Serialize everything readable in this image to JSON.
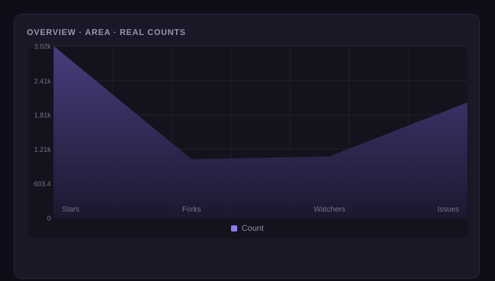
{
  "card": {
    "title": "OVERVIEW · AREA · REAL COUNTS"
  },
  "chart_data": {
    "type": "area",
    "categories": [
      "Stars",
      "Forks",
      "Watchers",
      "Issues"
    ],
    "series": [
      {
        "name": "Count",
        "values": [
          3020,
          1030,
          1080,
          2030
        ],
        "color": "#8b7cf6"
      }
    ],
    "y_ticks": [
      0,
      603.4,
      1210,
      1810,
      2410,
      3020
    ],
    "y_tick_labels": [
      "0",
      "603.4",
      "1.21k",
      "1.81k",
      "2.41k",
      "3.02k"
    ],
    "ylim": [
      0,
      3020
    ],
    "grid": true,
    "legend": {
      "position": "bottom",
      "label": "Count",
      "color": "#8b7cf6"
    }
  }
}
